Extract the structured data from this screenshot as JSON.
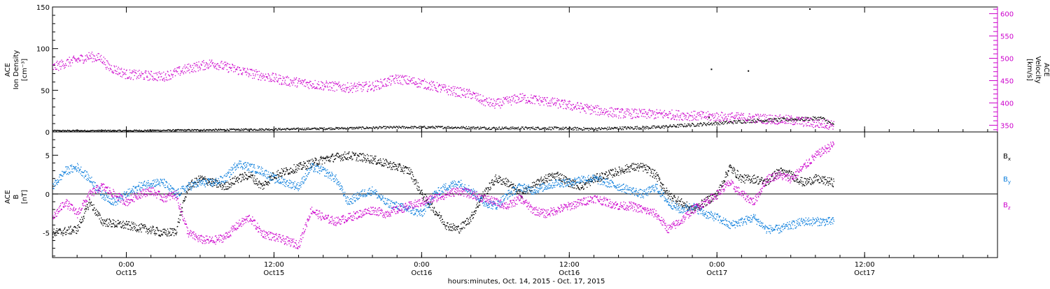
{
  "chart_data": [
    {
      "type": "scatter",
      "panel": "top",
      "ylabel_lines": [
        "ACE",
        "Ion Density",
        "[cm⁻³]"
      ],
      "ylabel_right_lines": [
        "ACE",
        "Velocity",
        "[km/s]"
      ],
      "ylim": [
        0,
        150
      ],
      "yticks": [
        0,
        50,
        100,
        150
      ],
      "y2lim": [
        335,
        615
      ],
      "y2ticks": [
        350,
        400,
        450,
        500,
        550,
        600
      ],
      "y2color": "#cc00cc",
      "series": [
        {
          "axis": "left",
          "color": "#000000",
          "keypoints": [
            [
              0,
              2
            ],
            [
              6,
              2
            ],
            [
              10,
              2.5
            ],
            [
              14,
              3
            ],
            [
              20,
              4
            ],
            [
              24,
              5
            ],
            [
              28,
              6
            ],
            [
              32,
              6
            ],
            [
              36,
              5
            ],
            [
              40,
              5
            ],
            [
              44,
              4
            ],
            [
              46,
              5
            ],
            [
              49,
              6
            ],
            [
              51,
              8
            ],
            [
              53,
              10
            ],
            [
              55,
              12
            ],
            [
              57,
              14
            ],
            [
              59,
              15
            ],
            [
              61,
              16
            ],
            [
              62.5,
              17
            ],
            [
              63.5,
              8
            ]
          ]
        },
        {
          "axis": "right",
          "color": "#cc00cc",
          "keypoints": [
            [
              0,
              480
            ],
            [
              1,
              490
            ],
            [
              3,
              505
            ],
            [
              4,
              500
            ],
            [
              4.5,
              482
            ],
            [
              6,
              465
            ],
            [
              9,
              460
            ],
            [
              11,
              478
            ],
            [
              13,
              490
            ],
            [
              14,
              482
            ],
            [
              16,
              468
            ],
            [
              17,
              462
            ],
            [
              19,
              450
            ],
            [
              22,
              440
            ],
            [
              24,
              435
            ],
            [
              26,
              438
            ],
            [
              28,
              455
            ],
            [
              30,
              445
            ],
            [
              32,
              430
            ],
            [
              34,
              420
            ],
            [
              35,
              405
            ],
            [
              36,
              398
            ],
            [
              38,
              412
            ],
            [
              40,
              405
            ],
            [
              42,
              395
            ],
            [
              44,
              385
            ],
            [
              46,
              378
            ],
            [
              48,
              376
            ],
            [
              50,
              375
            ],
            [
              52,
              372
            ],
            [
              54,
              370
            ],
            [
              56,
              368
            ],
            [
              58,
              365
            ],
            [
              60,
              362
            ],
            [
              62,
              355
            ],
            [
              63.5,
              352
            ]
          ]
        }
      ],
      "outliers": [
        [
          53.5,
          76
        ],
        [
          56.5,
          74
        ],
        [
          61.5,
          153
        ],
        [
          53.3,
          18
        ]
      ]
    },
    {
      "type": "scatter",
      "panel": "bottom",
      "ylabel_lines": [
        "ACE",
        "B",
        "[nT]"
      ],
      "ylim": [
        -8.2,
        8.0
      ],
      "yticks": [
        -5,
        0,
        5
      ],
      "zero_line": true,
      "series": [
        {
          "name_main": "B",
          "name_sub": "x",
          "color": "#000000",
          "keypoints": [
            [
              0,
              -5
            ],
            [
              2,
              -4.5
            ],
            [
              3,
              -1
            ],
            [
              4,
              -3.5
            ],
            [
              5,
              -3.8
            ],
            [
              6,
              -4
            ],
            [
              7,
              -4.3
            ],
            [
              8,
              -4.6
            ],
            [
              9,
              -5
            ],
            [
              10,
              -4.8
            ],
            [
              11,
              1
            ],
            [
              12,
              2
            ],
            [
              13,
              1.5
            ],
            [
              14,
              1
            ],
            [
              15,
              2
            ],
            [
              16,
              2.5
            ],
            [
              17,
              1
            ],
            [
              18,
              2.5
            ],
            [
              19,
              3
            ],
            [
              20,
              3.5
            ],
            [
              21,
              4
            ],
            [
              22,
              4.5
            ],
            [
              23,
              4.8
            ],
            [
              24,
              5
            ],
            [
              25,
              4.8
            ],
            [
              26,
              4.5
            ],
            [
              27,
              4
            ],
            [
              28,
              3.5
            ],
            [
              29,
              3
            ],
            [
              30,
              0
            ],
            [
              31,
              -2
            ],
            [
              32,
              -4
            ],
            [
              33,
              -4.5
            ],
            [
              34,
              -3
            ],
            [
              35,
              0
            ],
            [
              36,
              2
            ],
            [
              37,
              1.5
            ],
            [
              38,
              0
            ],
            [
              39,
              1
            ],
            [
              40,
              2
            ],
            [
              41,
              2.5
            ],
            [
              42,
              1.5
            ],
            [
              43,
              1
            ],
            [
              44,
              2
            ],
            [
              45,
              2.5
            ],
            [
              46,
              3
            ],
            [
              47,
              3.5
            ],
            [
              48,
              3.5
            ],
            [
              49,
              2.5
            ],
            [
              50,
              0
            ],
            [
              51,
              -1
            ],
            [
              52,
              -2
            ],
            [
              53,
              -1
            ],
            [
              54,
              0
            ],
            [
              55,
              3.5
            ],
            [
              56,
              2
            ],
            [
              57,
              2
            ],
            [
              58,
              1.5
            ],
            [
              59,
              3
            ],
            [
              60,
              2.5
            ],
            [
              61,
              1.5
            ],
            [
              62,
              2
            ],
            [
              63.5,
              1.5
            ]
          ]
        },
        {
          "name_main": "B",
          "name_sub": "y",
          "color": "#0a7ddc",
          "keypoints": [
            [
              0,
              1
            ],
            [
              1,
              3
            ],
            [
              2,
              3.5
            ],
            [
              3,
              2
            ],
            [
              4,
              0
            ],
            [
              5,
              -1
            ],
            [
              6,
              0
            ],
            [
              7,
              1
            ],
            [
              8,
              1.5
            ],
            [
              9,
              1.5
            ],
            [
              10,
              0
            ],
            [
              11,
              1
            ],
            [
              12,
              1.5
            ],
            [
              13,
              1.5
            ],
            [
              14,
              2
            ],
            [
              15,
              4
            ],
            [
              16,
              3.5
            ],
            [
              17,
              3
            ],
            [
              18,
              2
            ],
            [
              19,
              1.5
            ],
            [
              20,
              1
            ],
            [
              21,
              3.5
            ],
            [
              22,
              3
            ],
            [
              23,
              2
            ],
            [
              24,
              -1
            ],
            [
              25,
              0
            ],
            [
              26,
              0.5
            ],
            [
              27,
              -1
            ],
            [
              28,
              -1.5
            ],
            [
              29,
              -2
            ],
            [
              30,
              -2.5
            ],
            [
              31,
              0
            ],
            [
              32,
              1
            ],
            [
              33,
              1.5
            ],
            [
              34,
              0.5
            ],
            [
              35,
              -1
            ],
            [
              36,
              -1.5
            ],
            [
              37,
              0
            ],
            [
              38,
              1
            ],
            [
              39,
              0.5
            ],
            [
              40,
              1
            ],
            [
              41,
              1.5
            ],
            [
              42,
              1.5
            ],
            [
              43,
              2
            ],
            [
              44,
              2
            ],
            [
              45,
              1.5
            ],
            [
              46,
              1
            ],
            [
              47,
              0.5
            ],
            [
              48,
              0
            ],
            [
              49,
              1
            ],
            [
              50,
              -1
            ],
            [
              51,
              -2
            ],
            [
              52,
              -1.5
            ],
            [
              53,
              -2.5
            ],
            [
              54,
              -3
            ],
            [
              55,
              -4
            ],
            [
              56,
              -3.5
            ],
            [
              57,
              -3
            ],
            [
              58,
              -4.5
            ],
            [
              59,
              -4.5
            ],
            [
              60,
              -4
            ],
            [
              61,
              -3.5
            ],
            [
              62,
              -3.5
            ],
            [
              63.5,
              -3.5
            ]
          ]
        },
        {
          "name_main": "B",
          "name_sub": "z",
          "color": "#cc00cc",
          "keypoints": [
            [
              0,
              -3
            ],
            [
              1,
              -1
            ],
            [
              2,
              -2.5
            ],
            [
              3,
              0
            ],
            [
              4,
              1
            ],
            [
              5,
              0
            ],
            [
              6,
              -1
            ],
            [
              7,
              0
            ],
            [
              8,
              0.5
            ],
            [
              9,
              -0.5
            ],
            [
              10,
              0
            ],
            [
              11,
              -5
            ],
            [
              12,
              -5.8
            ],
            [
              13,
              -6
            ],
            [
              14,
              -5.5
            ],
            [
              15,
              -4
            ],
            [
              16,
              -3
            ],
            [
              17,
              -5
            ],
            [
              18,
              -5.5
            ],
            [
              19,
              -6
            ],
            [
              20,
              -6.5
            ],
            [
              21,
              -2
            ],
            [
              22,
              -3
            ],
            [
              23,
              -3.5
            ],
            [
              24,
              -3
            ],
            [
              25,
              -2.5
            ],
            [
              26,
              -2
            ],
            [
              27,
              -2.5
            ],
            [
              28,
              -2
            ],
            [
              29,
              -1.5
            ],
            [
              30,
              -1
            ],
            [
              31,
              -0.5
            ],
            [
              32,
              0
            ],
            [
              33,
              0.5
            ],
            [
              34,
              0
            ],
            [
              35,
              -0.5
            ],
            [
              36,
              -1
            ],
            [
              37,
              -1.5
            ],
            [
              38,
              -0.5
            ],
            [
              39,
              -2
            ],
            [
              40,
              -2.5
            ],
            [
              41,
              -2
            ],
            [
              42,
              -1.5
            ],
            [
              43,
              -1
            ],
            [
              44,
              -0.5
            ],
            [
              45,
              -1
            ],
            [
              46,
              -1.5
            ],
            [
              47,
              -1.5
            ],
            [
              48,
              -2
            ],
            [
              49,
              -2.5
            ],
            [
              50,
              -4.5
            ],
            [
              51,
              -3.5
            ],
            [
              52,
              -2
            ],
            [
              53,
              -1
            ],
            [
              54,
              0
            ],
            [
              55,
              1.5
            ],
            [
              56,
              0
            ],
            [
              57,
              -1
            ],
            [
              58,
              2
            ],
            [
              59,
              2.5
            ],
            [
              60,
              2
            ],
            [
              61,
              3.5
            ],
            [
              62,
              5
            ],
            [
              63.5,
              6.5
            ]
          ]
        }
      ],
      "legend": "right"
    }
  ],
  "x_axis": {
    "xlim": [
      0,
      76.8
    ],
    "ticks": [
      {
        "x": 6.0,
        "time": "0:00",
        "date": "Oct15"
      },
      {
        "x": 18.0,
        "time": "12:00",
        "date": "Oct15"
      },
      {
        "x": 30.0,
        "time": "0:00",
        "date": "Oct16"
      },
      {
        "x": 42.0,
        "time": "12:00",
        "date": "Oct16"
      },
      {
        "x": 54.0,
        "time": "0:00",
        "date": "Oct17"
      },
      {
        "x": 66.0,
        "time": "12:00",
        "date": "Oct17"
      }
    ],
    "xlabel": "hours:minutes, Oct. 14, 2015 - Oct. 17, 2015"
  }
}
